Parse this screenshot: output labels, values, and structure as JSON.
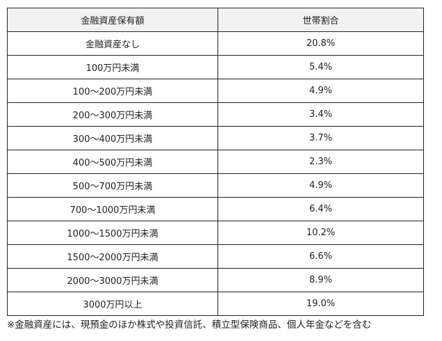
{
  "table": {
    "headers": [
      "金融資産保有額",
      "世帯割合"
    ],
    "rows": [
      [
        "金融資産なし",
        "20.8%"
      ],
      [
        "100万円未満",
        "5.4%"
      ],
      [
        "100～200万円未満",
        "4.9%"
      ],
      [
        "200～300万円未満",
        "3.4%"
      ],
      [
        "300～400万円未満",
        "3.7%"
      ],
      [
        "400～500万円未満",
        "2.3%"
      ],
      [
        "500～700万円未満",
        "4.9%"
      ],
      [
        "700～1000万円未満",
        "6.4%"
      ],
      [
        "1000～1500万円未満",
        "10.2%"
      ],
      [
        "1500～2000万円未満",
        "6.6%"
      ],
      [
        "2000～3000万円未満",
        "8.9%"
      ],
      [
        "3000万円以上",
        "19.0%"
      ]
    ]
  },
  "footnote": "※金融資産には、現預金のほか株式や投資信託、積立型保険商品、個人年金などを含む",
  "colors": {
    "header_bg": "#f2f2f2",
    "border": "#222222"
  }
}
